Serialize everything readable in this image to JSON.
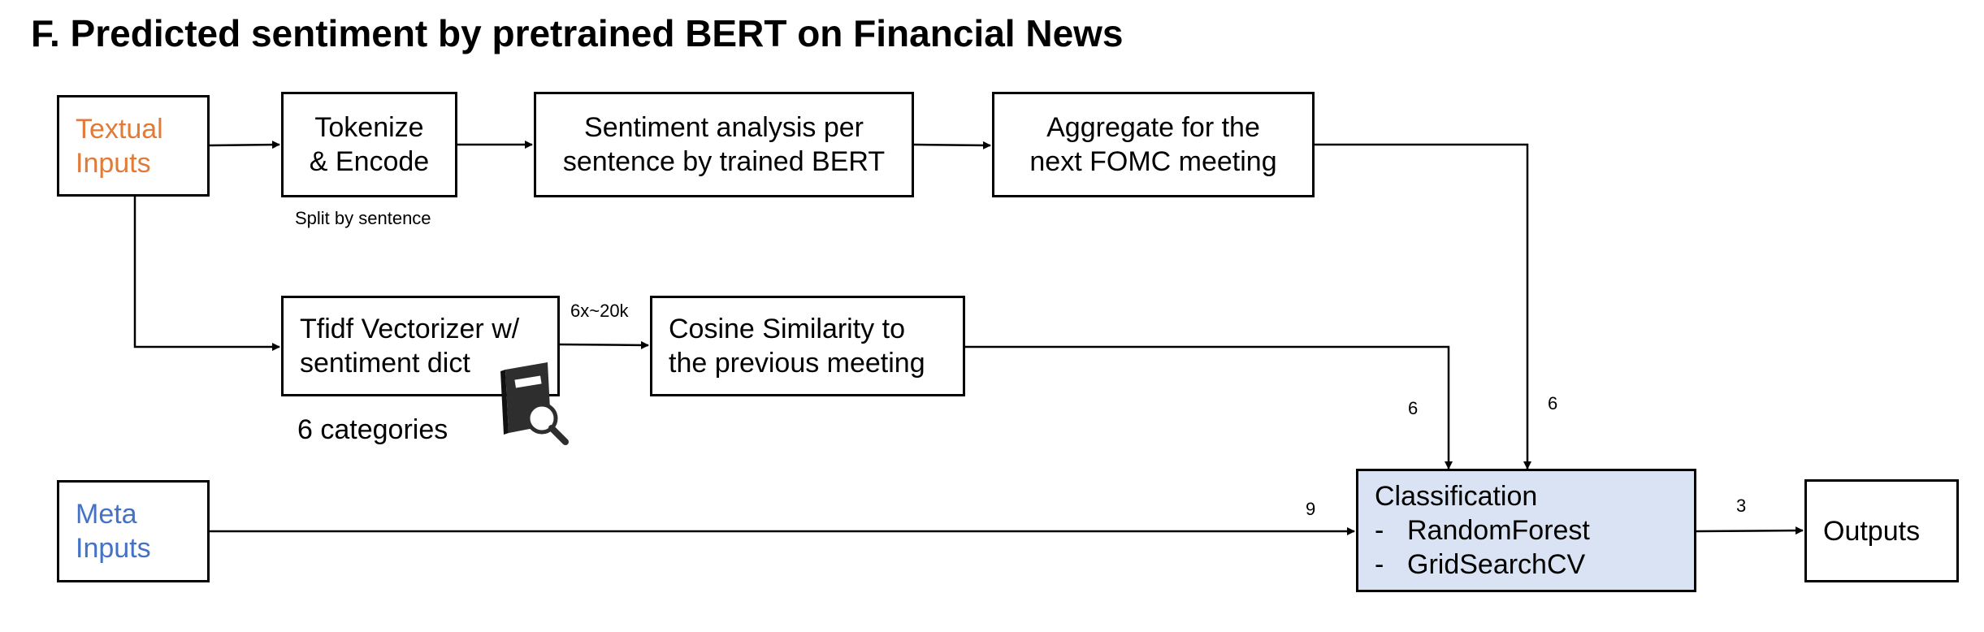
{
  "title": "F. Predicted sentiment by pretrained BERT on Financial News",
  "colors": {
    "textual": "#E07B39",
    "meta": "#4472C4",
    "classification_fill": "#DAE3F3"
  },
  "nodes": {
    "textual_inputs": {
      "line1": "Textual",
      "line2": "Inputs"
    },
    "tokenize": {
      "line1": "Tokenize",
      "line2": "& Encode",
      "note": "Split by sentence"
    },
    "sentiment": {
      "line1": "Sentiment analysis per",
      "line2": "sentence by trained BERT"
    },
    "aggregate": {
      "line1": "Aggregate for the",
      "line2": "next FOMC meeting"
    },
    "tfidf": {
      "line1": "Tfidf Vectorizer w/",
      "line2": "sentiment dict",
      "note": "6 categories",
      "icon": "book-search-icon"
    },
    "cosine": {
      "line1": "Cosine Similarity to",
      "line2": "the previous meeting"
    },
    "meta_inputs": {
      "line1": "Meta",
      "line2": "Inputs"
    },
    "classification": {
      "heading": "Classification",
      "items": [
        "RandomForest",
        "GridSearchCV"
      ],
      "dash": "-"
    },
    "outputs": {
      "label": "Outputs"
    }
  },
  "edges": {
    "tfidf_to_cosine": "6x~20k",
    "cosine_to_classification": "6",
    "aggregate_to_classification": "6",
    "meta_to_classification": "9",
    "classification_to_outputs": "3"
  }
}
